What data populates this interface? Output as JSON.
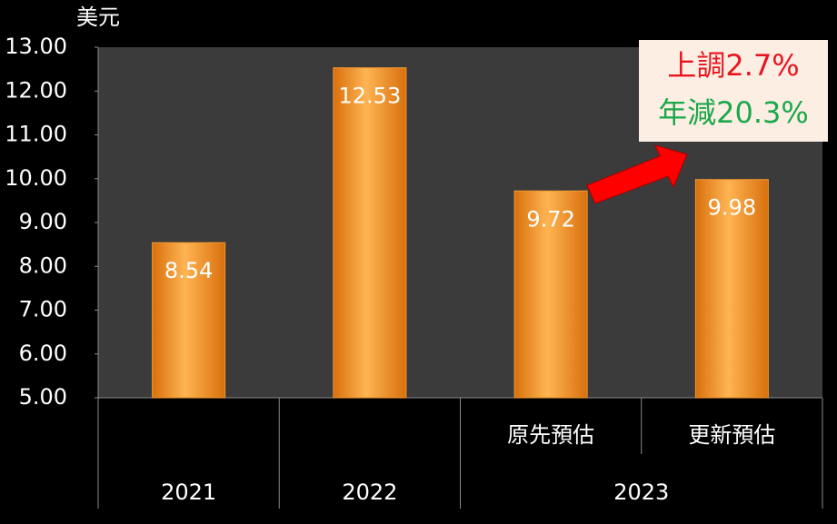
{
  "chart_data": {
    "type": "bar",
    "y_axis_label": "美元",
    "categories": [
      null,
      null,
      "原先預估",
      "更新預估"
    ],
    "groups": [
      {
        "label": "2021",
        "span": 1
      },
      {
        "label": "2022",
        "span": 1
      },
      {
        "label": "2023",
        "span": 2
      }
    ],
    "values": [
      8.54,
      12.53,
      9.72,
      9.98
    ],
    "color": "#f39a2e",
    "ylim": [
      5,
      13
    ],
    "yticks": [
      {
        "value": 5,
        "label": "5.00"
      },
      {
        "value": 6,
        "label": "6.00"
      },
      {
        "value": 7,
        "label": "7.00"
      },
      {
        "value": 8,
        "label": "8.00"
      },
      {
        "value": 9,
        "label": "9.00"
      },
      {
        "value": 10,
        "label": "10.00"
      },
      {
        "value": 11,
        "label": "11.00"
      },
      {
        "value": 12,
        "label": "12.00"
      },
      {
        "value": 13,
        "label": "13.00"
      }
    ],
    "annotations": [
      {
        "text": "上調2.7%",
        "color": "#e8141e"
      },
      {
        "text": "年減20.3%",
        "color": "#1aa84a"
      }
    ]
  }
}
